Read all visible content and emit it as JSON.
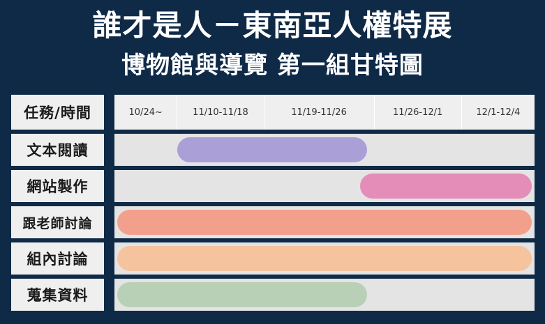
{
  "title": {
    "line1": "誰才是人－東南亞人權特展",
    "line2": "博物館與導覽 第一組甘特圖"
  },
  "header": {
    "label": "任務/時間",
    "periods": [
      "10/24~",
      "11/10-11/18",
      "11/19-11/26",
      "11/26-12/1",
      "12/1-12/4"
    ]
  },
  "tasks": [
    {
      "label": "文本閱讀",
      "color": "#ab9fd8",
      "start_period": 1,
      "end_period": 3
    },
    {
      "label": "網站製作",
      "color": "#e38db8",
      "start_period": 3,
      "end_period": 5
    },
    {
      "label": "跟老師討論",
      "color": "#f2a08c",
      "start_period": 0,
      "end_period": 5
    },
    {
      "label": "組內討論",
      "color": "#f6c39f",
      "start_period": 0,
      "end_period": 5
    },
    {
      "label": "蒐集資料",
      "color": "#b8d0b6",
      "start_period": 0,
      "end_period": 3
    }
  ]
}
